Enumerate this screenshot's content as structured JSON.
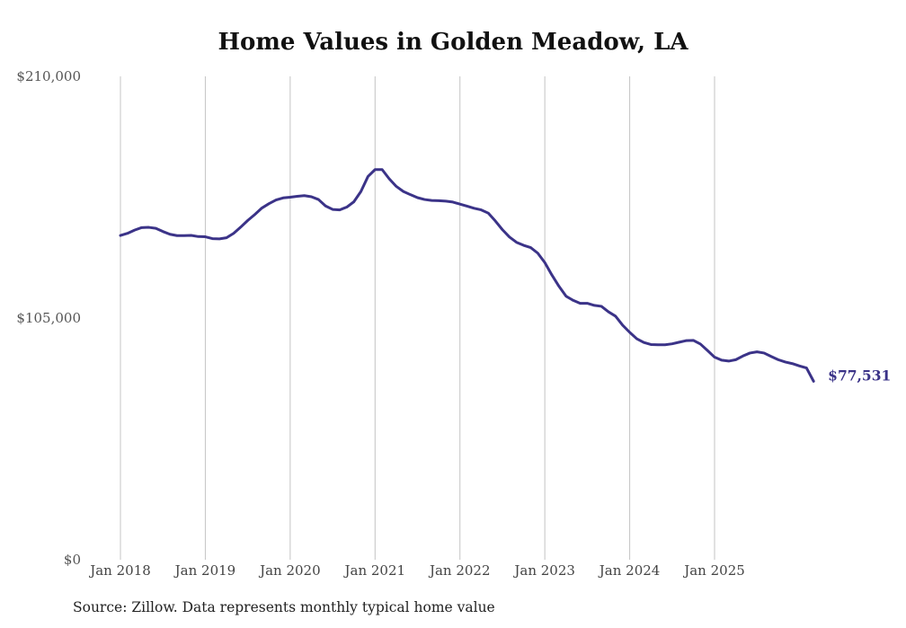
{
  "chart_data": {
    "type": "line",
    "title": "Home Values in Golden Meadow, LA",
    "xlabel": "",
    "ylabel": "",
    "source": "Source: Zillow. Data represents monthly typical home value",
    "ylim": [
      0,
      210000
    ],
    "yticks": [
      {
        "value": 0,
        "label": "$0"
      },
      {
        "value": 105000,
        "label": "$105,000"
      },
      {
        "value": 210000,
        "label": "$210,000"
      }
    ],
    "xticks": [
      "Jan 2018",
      "Jan 2019",
      "Jan 2020",
      "Jan 2021",
      "Jan 2022",
      "Jan 2023",
      "Jan 2024",
      "Jan 2025"
    ],
    "x_start": "Jan 2018",
    "x_unit": "month",
    "grid": "vertical",
    "line_color": "#3b3388",
    "end_label": "$77,531",
    "series": [
      {
        "name": "Typical home value",
        "values": [
          140900,
          141800,
          143200,
          144300,
          144400,
          144000,
          142600,
          141400,
          140800,
          140800,
          140900,
          140400,
          140300,
          139500,
          139400,
          139900,
          141800,
          144500,
          147400,
          150000,
          152800,
          154700,
          156300,
          157200,
          157500,
          157900,
          158200,
          157700,
          156500,
          153700,
          152200,
          152000,
          153200,
          155500,
          160000,
          166500,
          169500,
          169500,
          165500,
          162200,
          160000,
          158600,
          157300,
          156500,
          156100,
          156000,
          155800,
          155400,
          154500,
          153600,
          152700,
          152000,
          150600,
          147200,
          143400,
          140200,
          137900,
          136600,
          135600,
          133200,
          129100,
          123700,
          118800,
          114500,
          112700,
          111400,
          111400,
          110500,
          110100,
          107700,
          105800,
          101900,
          98800,
          96000,
          94400,
          93500,
          93400,
          93400,
          93800,
          94500,
          95200,
          95300,
          93700,
          90900,
          88000,
          86700,
          86300,
          86900,
          88500,
          89800,
          90300,
          89800,
          88300,
          86900,
          85900,
          85200,
          84200,
          83300,
          77531
        ]
      }
    ]
  }
}
